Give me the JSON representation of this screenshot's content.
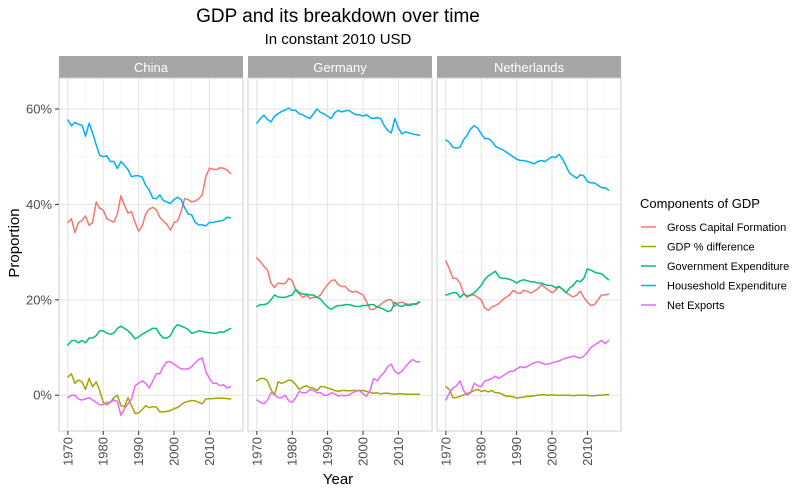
{
  "chart_data": {
    "type": "line",
    "title": "GDP and its breakdown over time",
    "subtitle": "In constant 2010 USD",
    "xlabel": "Year",
    "ylabel": "Proportion",
    "xlim": [
      1967.5,
      2019.5
    ],
    "ylim": [
      -0.075,
      0.665
    ],
    "x_ticks": [
      1970,
      1980,
      1990,
      2000,
      2010
    ],
    "y_ticks": [
      0,
      0.2,
      0.4,
      0.6
    ],
    "y_tick_labels": [
      "0%",
      "20%",
      "40%",
      "60%"
    ],
    "grid": true,
    "legend": {
      "title": "Components of GDP",
      "position": "right",
      "entries": [
        {
          "name": "Gross Capital Formation",
          "color": "#F8766D"
        },
        {
          "name": "GDP % difference",
          "color": "#A3A500"
        },
        {
          "name": "Government Expenditure",
          "color": "#00BF7D"
        },
        {
          "name": "Houseshold Expenditure",
          "color": "#00B0F6"
        },
        {
          "name": "Net Exports",
          "color": "#E76BF3"
        }
      ]
    },
    "panels": [
      {
        "name": "China",
        "series": [
          {
            "name": "Gross Capital Formation",
            "x_start": 1970,
            "values": [
              0.362,
              0.37,
              0.341,
              0.362,
              0.366,
              0.376,
              0.356,
              0.362,
              0.405,
              0.392,
              0.388,
              0.37,
              0.366,
              0.363,
              0.38,
              0.418,
              0.398,
              0.382,
              0.385,
              0.362,
              0.344,
              0.355,
              0.38,
              0.39,
              0.394,
              0.389,
              0.373,
              0.365,
              0.358,
              0.346,
              0.362,
              0.365,
              0.385,
              0.412,
              0.41,
              0.405,
              0.407,
              0.412,
              0.42,
              0.458,
              0.476,
              0.474,
              0.473,
              0.477,
              0.476,
              0.472,
              0.465
            ]
          },
          {
            "name": "GDP % difference",
            "x_start": 1970,
            "values": [
              0.038,
              0.045,
              0.025,
              0.032,
              0.028,
              0.012,
              0.035,
              0.018,
              0.028,
              0.01,
              -0.015,
              -0.02,
              -0.015,
              -0.005,
              0.0,
              -0.022,
              -0.024,
              -0.005,
              -0.022,
              -0.038,
              -0.037,
              -0.03,
              -0.022,
              -0.026,
              -0.024,
              -0.025,
              -0.035,
              -0.035,
              -0.034,
              -0.032,
              -0.028,
              -0.026,
              -0.02,
              -0.015,
              -0.013,
              -0.011,
              -0.012,
              -0.015,
              -0.018,
              -0.008,
              -0.007,
              -0.007,
              -0.006,
              -0.006,
              -0.006,
              -0.007,
              -0.008
            ]
          },
          {
            "name": "Government Expenditure",
            "x_start": 1970,
            "values": [
              0.105,
              0.114,
              0.115,
              0.11,
              0.115,
              0.11,
              0.12,
              0.12,
              0.125,
              0.135,
              0.135,
              0.13,
              0.128,
              0.13,
              0.14,
              0.145,
              0.14,
              0.135,
              0.128,
              0.118,
              0.122,
              0.128,
              0.132,
              0.136,
              0.14,
              0.14,
              0.128,
              0.12,
              0.12,
              0.125,
              0.14,
              0.148,
              0.145,
              0.142,
              0.138,
              0.13,
              0.132,
              0.135,
              0.134,
              0.132,
              0.131,
              0.13,
              0.13,
              0.133,
              0.132,
              0.136,
              0.14
            ]
          },
          {
            "name": "Houseshold Expenditure",
            "x_start": 1970,
            "values": [
              0.577,
              0.565,
              0.572,
              0.568,
              0.566,
              0.543,
              0.57,
              0.55,
              0.525,
              0.503,
              0.5,
              0.502,
              0.49,
              0.49,
              0.475,
              0.49,
              0.482,
              0.473,
              0.458,
              0.46,
              0.46,
              0.457,
              0.44,
              0.43,
              0.413,
              0.412,
              0.42,
              0.408,
              0.405,
              0.402,
              0.41,
              0.415,
              0.41,
              0.393,
              0.38,
              0.378,
              0.362,
              0.357,
              0.357,
              0.355,
              0.362,
              0.362,
              0.364,
              0.365,
              0.367,
              0.373,
              0.372
            ]
          },
          {
            "name": "Net Exports",
            "x_start": 1970,
            "values": [
              -0.005,
              0.0,
              0.0,
              -0.008,
              -0.01,
              -0.008,
              -0.005,
              -0.01,
              -0.015,
              -0.02,
              -0.02,
              -0.015,
              -0.015,
              -0.01,
              -0.013,
              -0.042,
              -0.028,
              -0.018,
              -0.008,
              0.02,
              0.025,
              0.03,
              0.025,
              0.015,
              0.03,
              0.045,
              0.045,
              0.06,
              0.07,
              0.07,
              0.065,
              0.06,
              0.055,
              0.055,
              0.055,
              0.06,
              0.068,
              0.075,
              0.078,
              0.05,
              0.035,
              0.025,
              0.025,
              0.02,
              0.022,
              0.015,
              0.018
            ]
          }
        ]
      },
      {
        "name": "Germany",
        "series": [
          {
            "name": "Gross Capital Formation",
            "x_start": 1970,
            "values": [
              0.288,
              0.28,
              0.27,
              0.262,
              0.235,
              0.226,
              0.235,
              0.234,
              0.234,
              0.245,
              0.24,
              0.22,
              0.212,
              0.205,
              0.21,
              0.203,
              0.205,
              0.205,
              0.21,
              0.222,
              0.232,
              0.24,
              0.242,
              0.232,
              0.228,
              0.228,
              0.22,
              0.216,
              0.218,
              0.214,
              0.21,
              0.196,
              0.18,
              0.18,
              0.185,
              0.19,
              0.196,
              0.2,
              0.2,
              0.186,
              0.194,
              0.195,
              0.192,
              0.19,
              0.192,
              0.19,
              0.195
            ]
          },
          {
            "name": "GDP % difference",
            "x_start": 1970,
            "values": [
              0.03,
              0.035,
              0.035,
              0.03,
              0.012,
              0.0,
              0.028,
              0.025,
              0.028,
              0.032,
              0.03,
              0.022,
              0.012,
              0.017,
              0.02,
              0.016,
              0.015,
              0.01,
              0.018,
              0.018,
              0.015,
              0.013,
              0.01,
              0.008,
              0.01,
              0.01,
              0.009,
              0.01,
              0.01,
              0.01,
              0.01,
              0.008,
              0.006,
              0.004,
              0.005,
              0.003,
              0.004,
              0.004,
              0.003,
              0.002,
              0.003,
              0.003,
              0.002,
              0.002,
              0.002,
              0.002,
              0.002
            ]
          },
          {
            "name": "Government Expenditure",
            "x_start": 1970,
            "values": [
              0.186,
              0.19,
              0.19,
              0.192,
              0.2,
              0.21,
              0.206,
              0.205,
              0.205,
              0.208,
              0.21,
              0.222,
              0.215,
              0.212,
              0.212,
              0.21,
              0.21,
              0.205,
              0.202,
              0.192,
              0.185,
              0.18,
              0.185,
              0.188,
              0.188,
              0.19,
              0.19,
              0.188,
              0.186,
              0.186,
              0.188,
              0.188,
              0.19,
              0.19,
              0.185,
              0.183,
              0.18,
              0.175,
              0.178,
              0.195,
              0.188,
              0.186,
              0.19,
              0.188,
              0.19,
              0.192,
              0.196
            ]
          },
          {
            "name": "Houseshold Expenditure",
            "x_start": 1970,
            "values": [
              0.57,
              0.58,
              0.587,
              0.578,
              0.573,
              0.585,
              0.59,
              0.595,
              0.598,
              0.602,
              0.597,
              0.597,
              0.59,
              0.588,
              0.583,
              0.58,
              0.59,
              0.6,
              0.593,
              0.59,
              0.585,
              0.58,
              0.592,
              0.597,
              0.594,
              0.596,
              0.597,
              0.592,
              0.588,
              0.588,
              0.585,
              0.588,
              0.582,
              0.58,
              0.582,
              0.58,
              0.565,
              0.555,
              0.55,
              0.58,
              0.56,
              0.548,
              0.552,
              0.55,
              0.548,
              0.546,
              0.545
            ]
          },
          {
            "name": "Net Exports",
            "x_start": 1970,
            "values": [
              -0.01,
              -0.015,
              -0.018,
              -0.01,
              0.005,
              0.002,
              -0.005,
              -0.005,
              0.0,
              -0.012,
              -0.015,
              -0.005,
              0.008,
              0.005,
              0.005,
              0.012,
              0.01,
              0.005,
              0.005,
              0.0,
              0.0,
              0.005,
              0.003,
              -0.002,
              0.0,
              -0.001,
              0.0,
              0.005,
              0.008,
              0.01,
              0.003,
              -0.002,
              0.01,
              0.035,
              0.03,
              0.04,
              0.048,
              0.06,
              0.065,
              0.05,
              0.045,
              0.05,
              0.06,
              0.068,
              0.075,
              0.07,
              0.07
            ]
          }
        ]
      },
      {
        "name": "Netherlands",
        "series": [
          {
            "name": "Gross Capital Formation",
            "x_start": 1970,
            "values": [
              0.282,
              0.265,
              0.245,
              0.245,
              0.235,
              0.215,
              0.205,
              0.21,
              0.21,
              0.205,
              0.2,
              0.183,
              0.178,
              0.185,
              0.188,
              0.192,
              0.2,
              0.205,
              0.21,
              0.22,
              0.215,
              0.213,
              0.22,
              0.218,
              0.214,
              0.218,
              0.223,
              0.232,
              0.226,
              0.22,
              0.215,
              0.22,
              0.228,
              0.222,
              0.215,
              0.21,
              0.206,
              0.21,
              0.218,
              0.205,
              0.195,
              0.188,
              0.19,
              0.2,
              0.21,
              0.21,
              0.212
            ]
          },
          {
            "name": "GDP % difference",
            "x_start": 1970,
            "values": [
              0.018,
              0.012,
              -0.005,
              -0.005,
              -0.002,
              0.0,
              0.004,
              0.006,
              0.01,
              0.012,
              0.008,
              0.01,
              0.007,
              0.01,
              0.005,
              0.005,
              0.002,
              -0.002,
              -0.002,
              -0.003,
              -0.006,
              -0.005,
              -0.004,
              -0.002,
              -0.002,
              -0.001,
              0.0,
              0.001,
              0.001,
              0.0,
              0.001,
              0.0,
              0.0,
              0.0,
              0.0,
              0.0,
              -0.001,
              0.0,
              0.0,
              0.0,
              0.0,
              -0.001,
              -0.001,
              0.0,
              0.0,
              0.001,
              0.001
            ]
          },
          {
            "name": "Government Expenditure",
            "x_start": 1970,
            "values": [
              0.21,
              0.212,
              0.215,
              0.215,
              0.205,
              0.212,
              0.208,
              0.21,
              0.215,
              0.222,
              0.23,
              0.243,
              0.25,
              0.255,
              0.26,
              0.248,
              0.245,
              0.245,
              0.243,
              0.24,
              0.235,
              0.24,
              0.242,
              0.24,
              0.238,
              0.238,
              0.235,
              0.235,
              0.232,
              0.23,
              0.23,
              0.225,
              0.228,
              0.222,
              0.215,
              0.225,
              0.23,
              0.24,
              0.238,
              0.245,
              0.265,
              0.262,
              0.258,
              0.256,
              0.255,
              0.248,
              0.242
            ]
          },
          {
            "name": "Houseshold Expenditure",
            "x_start": 1970,
            "values": [
              0.535,
              0.53,
              0.52,
              0.518,
              0.52,
              0.535,
              0.545,
              0.558,
              0.565,
              0.56,
              0.548,
              0.538,
              0.538,
              0.532,
              0.522,
              0.518,
              0.515,
              0.51,
              0.505,
              0.5,
              0.495,
              0.492,
              0.492,
              0.49,
              0.488,
              0.485,
              0.49,
              0.492,
              0.49,
              0.495,
              0.5,
              0.498,
              0.505,
              0.495,
              0.48,
              0.465,
              0.46,
              0.455,
              0.462,
              0.46,
              0.448,
              0.445,
              0.445,
              0.44,
              0.435,
              0.435,
              0.43
            ]
          },
          {
            "name": "Net Exports",
            "x_start": 1970,
            "values": [
              -0.01,
              0.005,
              0.015,
              0.02,
              0.03,
              0.01,
              0.0,
              0.005,
              0.025,
              0.02,
              0.018,
              0.03,
              0.032,
              0.035,
              0.04,
              0.035,
              0.04,
              0.045,
              0.05,
              0.05,
              0.055,
              0.06,
              0.058,
              0.06,
              0.065,
              0.068,
              0.07,
              0.068,
              0.065,
              0.065,
              0.068,
              0.07,
              0.072,
              0.075,
              0.078,
              0.08,
              0.082,
              0.08,
              0.078,
              0.082,
              0.09,
              0.1,
              0.105,
              0.11,
              0.115,
              0.108,
              0.115
            ]
          }
        ]
      }
    ]
  }
}
